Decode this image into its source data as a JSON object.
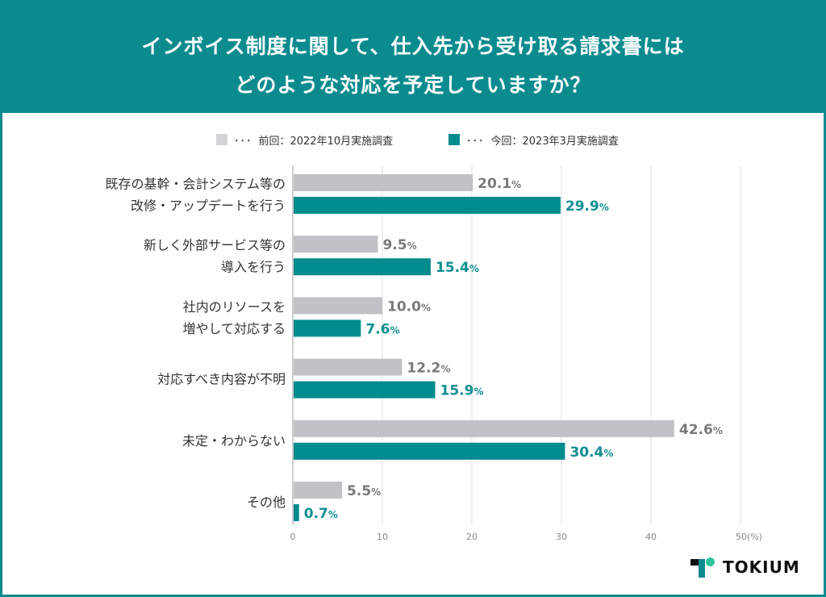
{
  "header": {
    "title_line1": "インボイス制度に関して、仕入先から受け取る請求書には",
    "title_line2": "どのような対応を予定していますか？"
  },
  "colors": {
    "header_bg": "#0c8b8f",
    "previous": "#c2c2c6",
    "current": "#008c8e",
    "previous_label": "#7a7a7c",
    "current_label": "#0f8f91"
  },
  "legend": {
    "previous": {
      "dots": "･･･",
      "text": "前回：2022年10月実施調査"
    },
    "current": {
      "dots": "･･･",
      "text": "今回：2023年3月実施調査"
    }
  },
  "logo": {
    "text": "TOKIUM"
  },
  "chart_data": {
    "type": "bar",
    "orientation": "horizontal",
    "title": "インボイス制度に関して、仕入先から受け取る請求書にはどのような対応を予定していますか？",
    "categories": [
      [
        "既存の基幹・会計システム等の",
        "改修・アップデートを行う"
      ],
      [
        "新しく外部サービス等の",
        "導入を行う"
      ],
      [
        "社内のリソースを",
        "増やして対応する"
      ],
      [
        "対応すべき内容が不明"
      ],
      [
        "未定・わからない"
      ],
      [
        "その他"
      ]
    ],
    "series": [
      {
        "name": "前回：2022年10月実施調査",
        "key": "previous",
        "values": [
          20.1,
          9.5,
          10.0,
          12.2,
          42.6,
          5.5
        ]
      },
      {
        "name": "今回：2023年3月実施調査",
        "key": "current",
        "values": [
          29.9,
          15.4,
          7.6,
          15.9,
          30.4,
          0.7
        ]
      }
    ],
    "value_labels": {
      "previous": [
        "20.1",
        "9.5",
        "10.0",
        "12.2",
        "42.6",
        "5.5"
      ],
      "current": [
        "29.9",
        "15.4",
        "7.6",
        "15.9",
        "30.4",
        "0.7"
      ],
      "suffix": "%"
    },
    "xlim": [
      0,
      50
    ],
    "xticks": [
      "0",
      "10",
      "20",
      "30",
      "40",
      "50(%)"
    ],
    "xtick_values": [
      0,
      10,
      20,
      30,
      40,
      50
    ],
    "grid": true,
    "legend_position": "top"
  }
}
